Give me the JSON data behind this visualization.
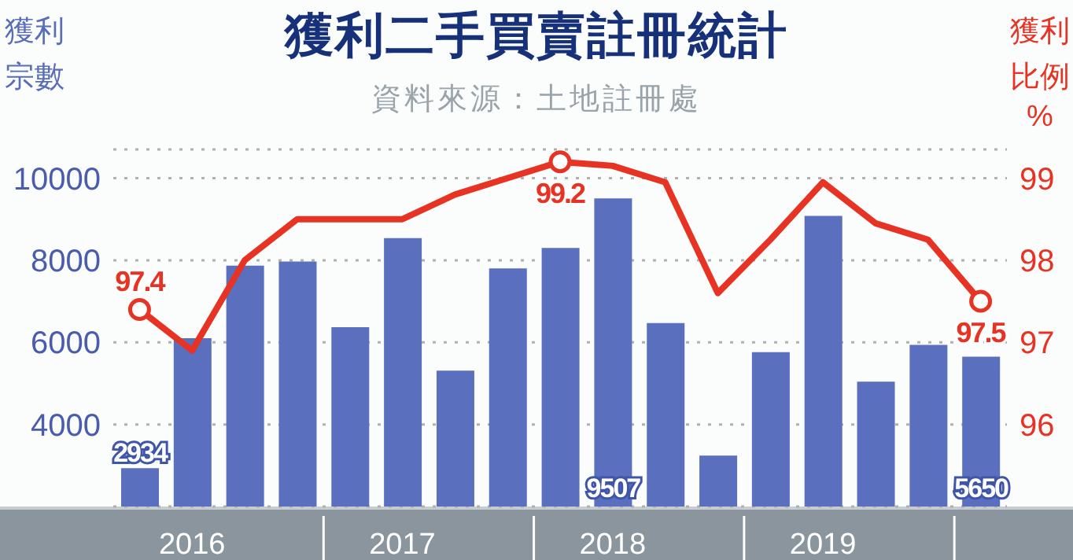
{
  "chart_data": {
    "type": "bar",
    "title": "獲利二手買賣註冊統計",
    "annotations": [
      "資料來源：土地註冊處"
    ],
    "ylabel": "獲利宗數",
    "y2label": "獲利比例%",
    "categories": [
      null,
      "2016",
      null,
      null,
      null,
      "2017",
      null,
      null,
      null,
      "2018",
      null,
      null,
      null,
      "2019",
      null,
      null,
      null
    ],
    "series": [
      {
        "color": "#5b6fbf",
        "values": [
          2934,
          6100,
          7870,
          7970,
          6370,
          8540,
          5310,
          7800,
          8300,
          9507,
          6470,
          3240,
          5760,
          9080,
          5040,
          5940,
          5650
        ],
        "value_labels": [
          "2934",
          null,
          null,
          null,
          null,
          null,
          null,
          null,
          null,
          "9507",
          null,
          null,
          null,
          null,
          null,
          null,
          "5650"
        ]
      },
      {
        "type": "line",
        "axis": "y2",
        "color": "#e63323",
        "values": [
          97.4,
          96.9,
          98.0,
          98.5,
          98.5,
          98.5,
          98.8,
          99.0,
          99.2,
          99.15,
          98.95,
          97.6,
          98.25,
          98.95,
          98.45,
          98.25,
          97.5
        ],
        "value_labels": [
          "97.4",
          null,
          null,
          null,
          null,
          null,
          null,
          null,
          "99.2",
          null,
          null,
          null,
          null,
          null,
          null,
          null,
          "97.5"
        ]
      }
    ],
    "ylim": [
      2000,
      10700
    ],
    "yticks": [
      4000,
      6000,
      8000,
      10000
    ],
    "y2lim": [
      95,
      99.35
    ],
    "y2ticks": [
      96,
      97,
      98,
      99
    ],
    "grid": "y",
    "legend": false
  }
}
